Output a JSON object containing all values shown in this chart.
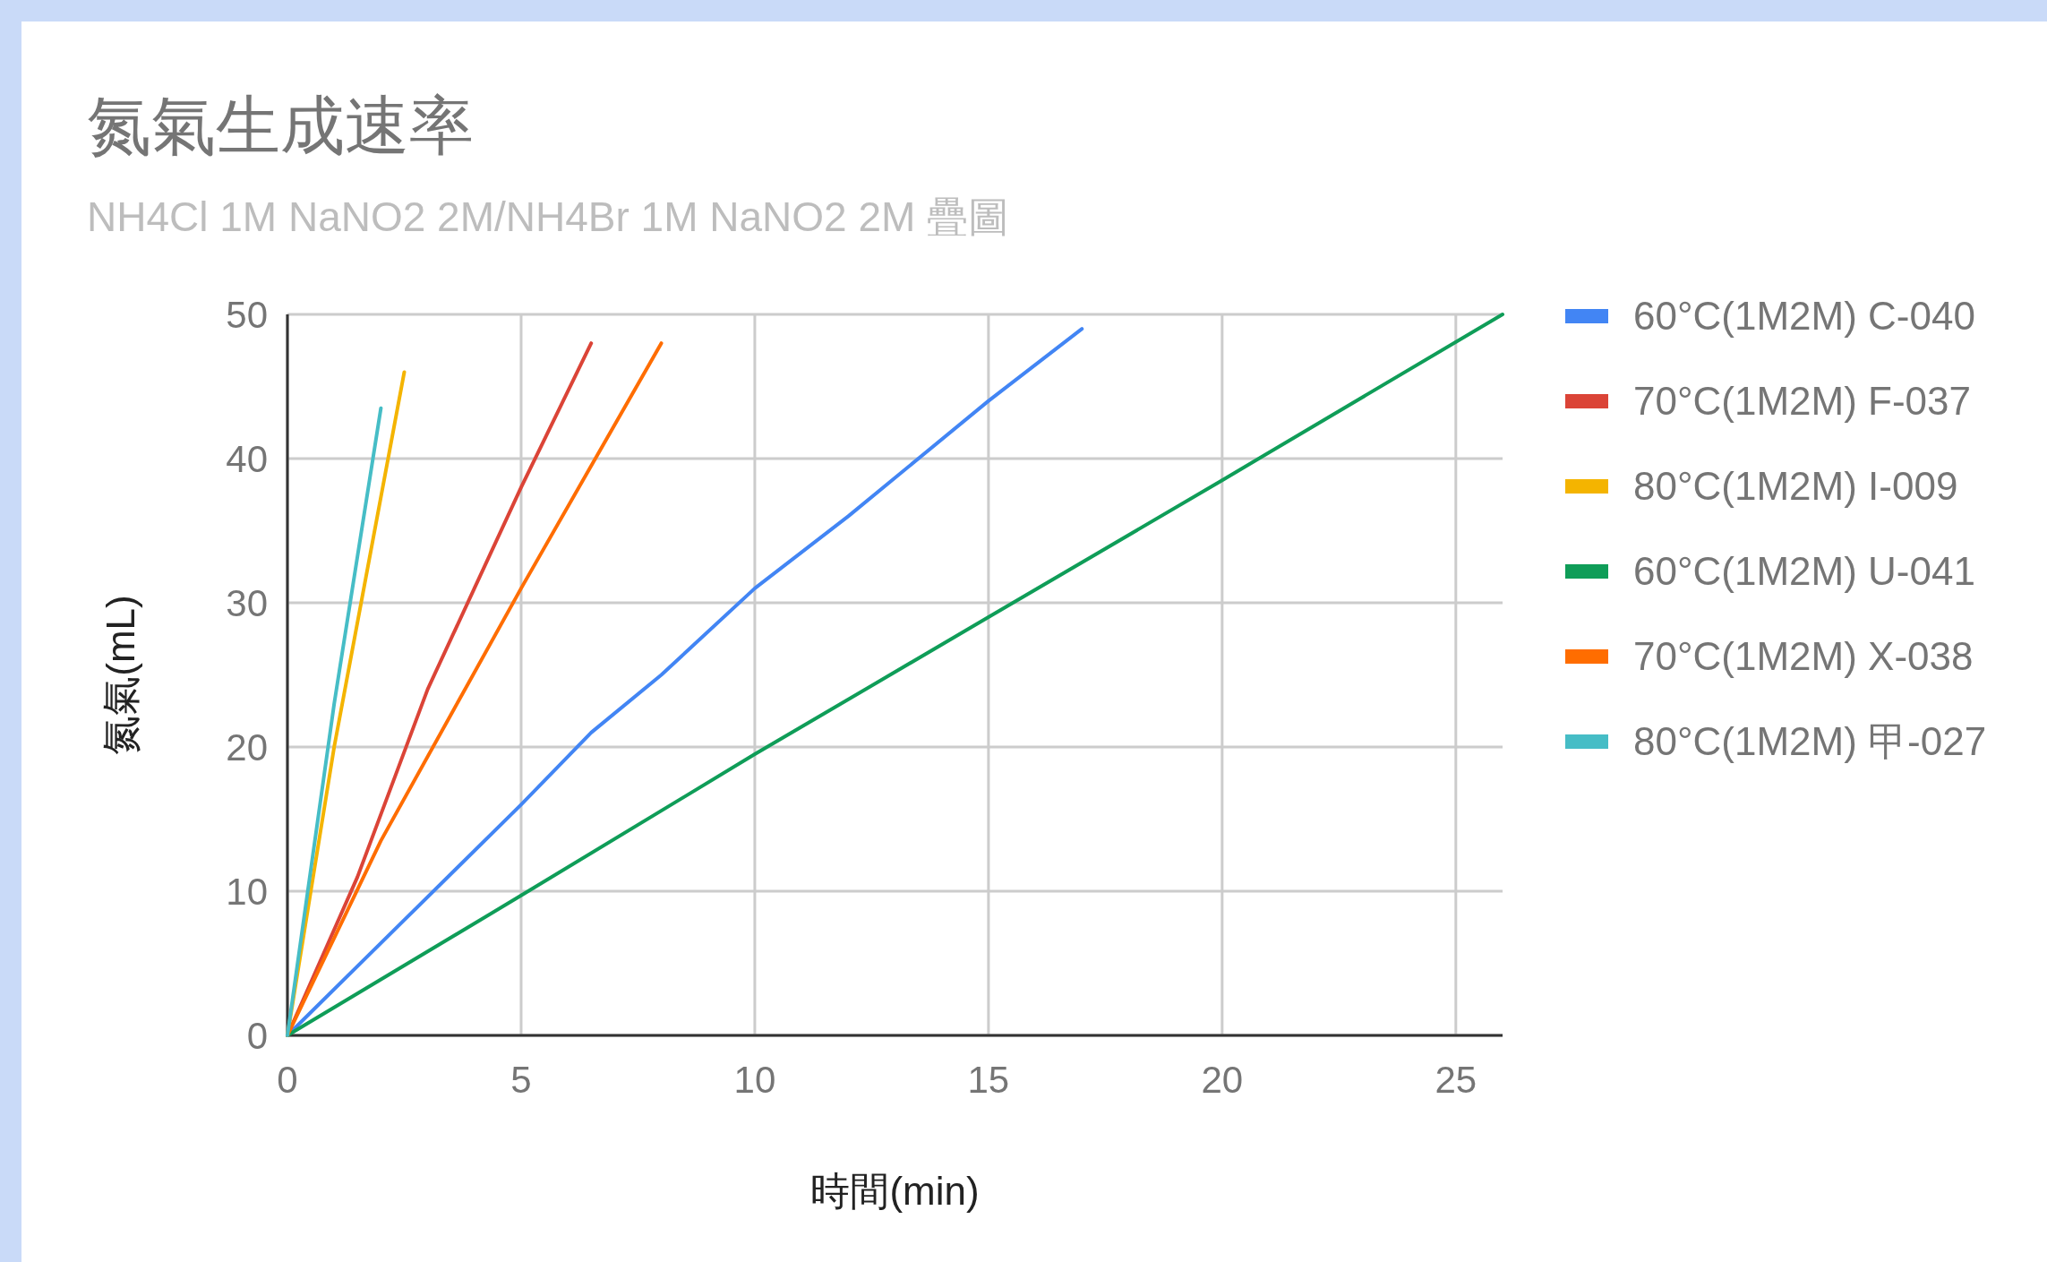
{
  "chart_data": {
    "type": "line",
    "title": "氮氣生成速率",
    "subtitle": "NH4Cl 1M NaNO2 2M/NH4Br 1M NaNO2 2M 疊圖",
    "xlabel": "時間(min)",
    "ylabel": "氮氣(mL)",
    "xlim": [
      0,
      26
    ],
    "xticks": [
      0,
      5,
      10,
      15,
      20,
      25
    ],
    "ylim": [
      0,
      50
    ],
    "yticks": [
      0,
      10,
      20,
      30,
      40,
      50
    ],
    "grid": true,
    "legend": "right",
    "series": [
      {
        "name": "60°C(1M2M) C-040",
        "color": "#4285f4",
        "x": [
          0,
          2.5,
          5,
          6.5,
          8,
          10,
          12,
          15,
          17
        ],
        "values": [
          0,
          8,
          16,
          21,
          25,
          31,
          36,
          44,
          49
        ]
      },
      {
        "name": "70°C(1M2M) F-037",
        "color": "#db4437",
        "x": [
          0,
          1.5,
          3,
          4,
          5,
          6.5
        ],
        "values": [
          0,
          11,
          24,
          31,
          38,
          48
        ]
      },
      {
        "name": "80°C(1M2M) I-009",
        "color": "#f4b400",
        "x": [
          0,
          1,
          2.5
        ],
        "values": [
          0,
          20,
          46
        ]
      },
      {
        "name": "60°C(1M2M) U-041",
        "color": "#0f9d58",
        "x": [
          0,
          5,
          10,
          15,
          20,
          26
        ],
        "values": [
          0,
          9.7,
          19.5,
          29,
          38.5,
          50
        ]
      },
      {
        "name": "70°C(1M2M) X-038",
        "color": "#ff6d00",
        "x": [
          0,
          2,
          5,
          8
        ],
        "values": [
          0,
          13.5,
          31,
          48
        ]
      },
      {
        "name": "80°C(1M2M) 甲-027",
        "color": "#46bdc6",
        "x": [
          0,
          1,
          2
        ],
        "values": [
          0,
          23,
          43.5
        ]
      }
    ]
  }
}
